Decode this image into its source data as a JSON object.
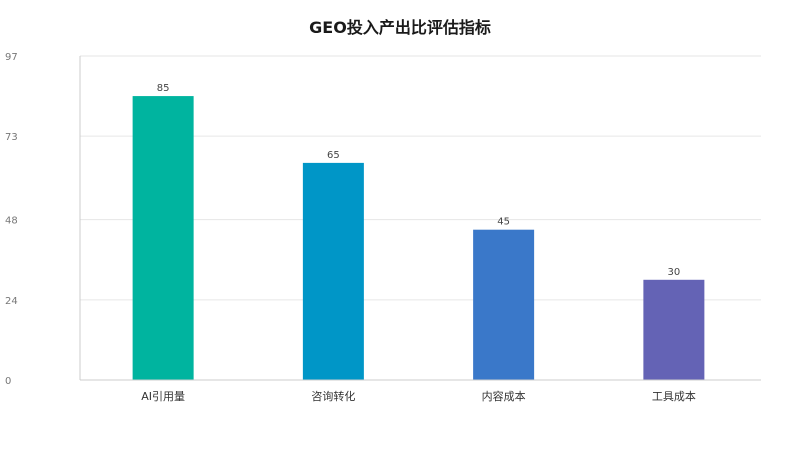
{
  "chart_data": {
    "type": "bar",
    "title": "GEO投入产出比评估指标",
    "categories": [
      "AI引用量",
      "咨询转化",
      "内容成本",
      "工具成本"
    ],
    "values": [
      85,
      65,
      45,
      30
    ],
    "colors": [
      "#00b49f",
      "#0096c7",
      "#3a78c9",
      "#6463b5"
    ],
    "ylim": [
      0,
      97
    ],
    "yticks": [
      "0",
      "24",
      "48",
      "73",
      "97"
    ],
    "xlabel": "",
    "ylabel": "",
    "grid": true,
    "legend": "none"
  }
}
